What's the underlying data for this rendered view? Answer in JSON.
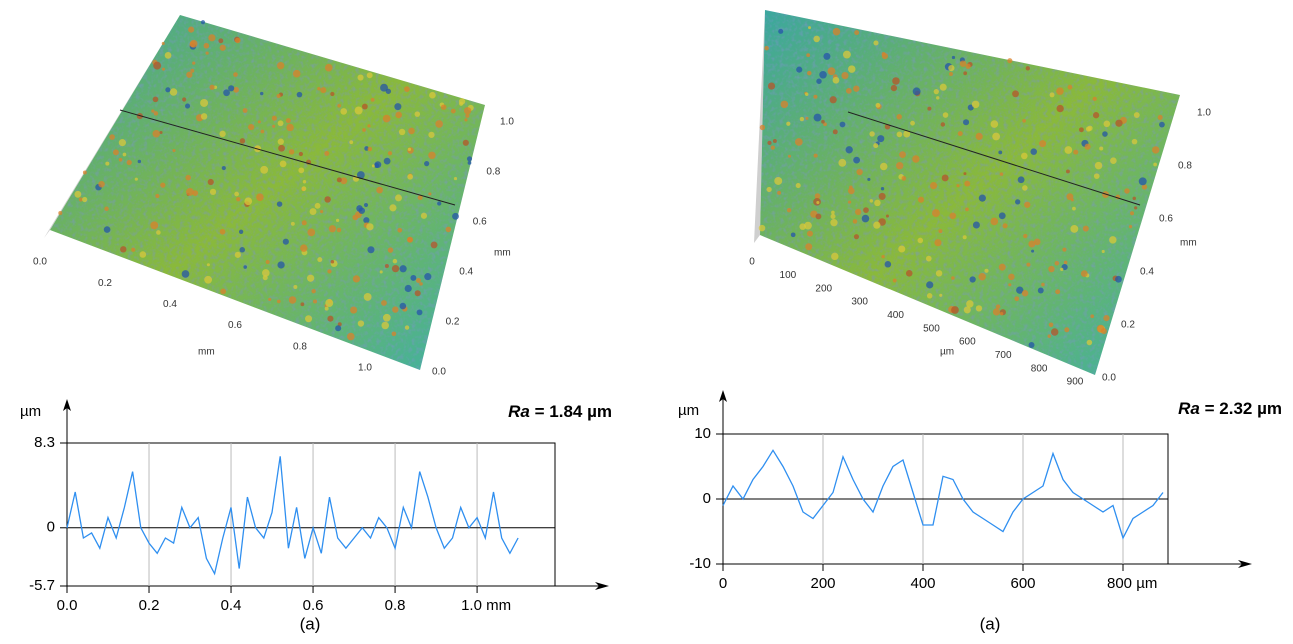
{
  "chart_data": [
    {
      "type": "line",
      "ylabel": "µm",
      "annotation_symbol": "Ra",
      "annotation_text": " = 1.84 µm",
      "caption": "(a)",
      "x": [
        0,
        0.02,
        0.04,
        0.06,
        0.08,
        0.1,
        0.12,
        0.14,
        0.16,
        0.18,
        0.2,
        0.22,
        0.24,
        0.26,
        0.28,
        0.3,
        0.32,
        0.34,
        0.36,
        0.38,
        0.4,
        0.42,
        0.44,
        0.46,
        0.48,
        0.5,
        0.52,
        0.54,
        0.56,
        0.58,
        0.6,
        0.62,
        0.64,
        0.66,
        0.68,
        0.7,
        0.72,
        0.74,
        0.76,
        0.78,
        0.8,
        0.82,
        0.84,
        0.86,
        0.88,
        0.9,
        0.92,
        0.94,
        0.96,
        0.98,
        1.0,
        1.02,
        1.04,
        1.06,
        1.08,
        1.1
      ],
      "series": [
        {
          "color": "#2f8ff0",
          "values": [
            0,
            3.5,
            -1,
            -0.5,
            -2,
            1,
            -1,
            2,
            5.5,
            0,
            -1.5,
            -2.5,
            -1,
            -1.5,
            2,
            0,
            1,
            -3,
            -4.5,
            -1,
            2,
            -4,
            3,
            0,
            -1,
            1.5,
            7,
            -2,
            2,
            -3,
            0,
            -2.5,
            3,
            -1,
            -2,
            -1,
            0,
            -1,
            1,
            0,
            -2,
            2,
            0,
            5.5,
            3,
            0,
            -2,
            -1,
            2,
            0,
            1,
            -1,
            3.5,
            -1,
            -2.5,
            -1
          ]
        }
      ],
      "xlim": [
        0,
        1.19
      ],
      "ylim": [
        -5.7,
        8.3
      ],
      "xticks": [
        {
          "value": 0,
          "label": "0.0"
        },
        0.2,
        0.4,
        0.6,
        0.8,
        {
          "value": 1,
          "label": "1.0 mm"
        }
      ],
      "yticks": [
        -5.7,
        0,
        8.3
      ],
      "grid": true
    },
    {
      "type": "line",
      "ylabel": "µm",
      "annotation_symbol": "Ra",
      "annotation_text": " = 2.32 µm",
      "caption": "(a)",
      "x": [
        0,
        20,
        40,
        60,
        80,
        100,
        120,
        140,
        160,
        180,
        200,
        220,
        240,
        260,
        280,
        300,
        320,
        340,
        360,
        380,
        400,
        420,
        440,
        460,
        480,
        500,
        520,
        540,
        560,
        580,
        600,
        620,
        640,
        660,
        680,
        700,
        720,
        740,
        760,
        780,
        800,
        820,
        840,
        860,
        880
      ],
      "series": [
        {
          "color": "#2f8ff0",
          "values": [
            -1,
            2,
            0,
            3,
            5,
            7.5,
            5,
            2,
            -2,
            -3,
            -1,
            1,
            6.5,
            3,
            0,
            -2,
            2,
            5,
            6,
            1,
            -4,
            -4,
            3.5,
            3,
            0,
            -2,
            -3,
            -4,
            -5,
            -2,
            0,
            1,
            2,
            7,
            3,
            1,
            0,
            -1,
            -2,
            -1,
            -6,
            -3,
            -2,
            -1,
            1
          ]
        }
      ],
      "xlim": [
        0,
        890
      ],
      "ylim": [
        -10,
        10
      ],
      "xticks": [
        0,
        200,
        400,
        600,
        {
          "value": 800,
          "label": "800 µm"
        }
      ],
      "yticks": [
        -10,
        0,
        10
      ],
      "grid": true
    }
  ],
  "surfaces": [
    {
      "front_labels": [
        "0.0",
        "0.2",
        "0.4",
        "0.6",
        "0.8",
        "1.0"
      ],
      "front_unit": "mm",
      "side_labels": [
        "0.0",
        "0.2",
        "0.4",
        "0.6",
        "0.8",
        "1.0"
      ],
      "side_unit": "mm"
    },
    {
      "front_labels": [
        "0",
        "100",
        "200",
        "300",
        "400",
        "500",
        "600",
        "700",
        "800",
        "900"
      ],
      "front_unit": "µm",
      "side_labels": [
        "0.0",
        "0.2",
        "0.4",
        "0.6",
        "0.8",
        "1.0"
      ],
      "side_unit": "mm"
    }
  ]
}
